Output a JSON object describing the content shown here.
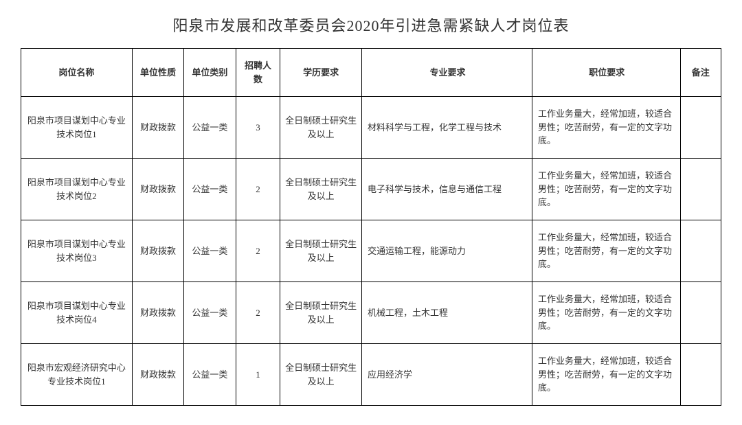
{
  "title": "阳泉市发展和改革委员会2020年引进急需紧缺人才岗位表",
  "columns": {
    "position": "岗位名称",
    "nature": "单位性质",
    "category": "单位类别",
    "count": "招聘人数",
    "education": "学历要求",
    "major": "专业要求",
    "req": "职位要求",
    "note": "备注"
  },
  "rows": [
    {
      "position": "阳泉市项目谋划中心专业技术岗位1",
      "nature": "财政拨款",
      "category": "公益一类",
      "count": "3",
      "education": "全日制硕士研究生及以上",
      "major": "材料科学与工程，化学工程与技术",
      "req": "工作业务量大，经常加班，较适合男性；吃苦耐劳，有一定的文字功底。",
      "note": ""
    },
    {
      "position": "阳泉市项目谋划中心专业技术岗位2",
      "nature": "财政拨款",
      "category": "公益一类",
      "count": "2",
      "education": "全日制硕士研究生及以上",
      "major": "电子科学与技术，信息与通信工程",
      "req": "工作业务量大，经常加班，较适合男性；吃苦耐劳，有一定的文字功底。",
      "note": ""
    },
    {
      "position": "阳泉市项目谋划中心专业技术岗位3",
      "nature": "财政拨款",
      "category": "公益一类",
      "count": "2",
      "education": "全日制硕士研究生及以上",
      "major": "交通运输工程，能源动力",
      "req": "工作业务量大，经常加班，较适合男性；吃苦耐劳，有一定的文字功底。",
      "note": ""
    },
    {
      "position": "阳泉市项目谋划中心专业技术岗位4",
      "nature": "财政拨款",
      "category": "公益一类",
      "count": "2",
      "education": "全日制硕士研究生及以上",
      "major": "机械工程，土木工程",
      "req": "工作业务量大，经常加班，较适合男性；吃苦耐劳，有一定的文字功底。",
      "note": ""
    },
    {
      "position": "阳泉市宏观经济研究中心专业技术岗位1",
      "nature": "财政拨款",
      "category": "公益一类",
      "count": "1",
      "education": "全日制硕士研究生及以上",
      "major": "应用经济学",
      "req": "工作业务量大，经常加班，较适合男性；吃苦耐劳，有一定的文字功底。",
      "note": ""
    }
  ]
}
